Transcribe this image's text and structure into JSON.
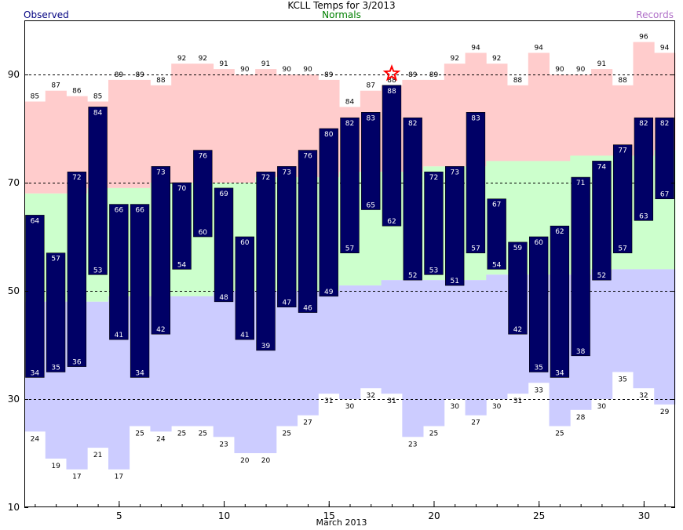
{
  "chart_data": {
    "type": "bar",
    "title": "KCLL Temps for 3/2013",
    "xlabel": "March 2013",
    "legend": {
      "observed": "Observed",
      "normals": "Normals",
      "records": "Records"
    },
    "ylim": [
      10,
      100
    ],
    "xlim": [
      0.5,
      31.5
    ],
    "y_ticks": [
      10,
      30,
      50,
      70,
      90
    ],
    "x_ticks": [
      5,
      10,
      15,
      20,
      25,
      30
    ],
    "grid": "dashed at y ticks",
    "record_high_day": 18,
    "days": [
      1,
      2,
      3,
      4,
      5,
      6,
      7,
      8,
      9,
      10,
      11,
      12,
      13,
      14,
      15,
      16,
      17,
      18,
      19,
      20,
      21,
      22,
      23,
      24,
      25,
      26,
      27,
      28,
      29,
      30,
      31
    ],
    "observed_high": [
      64,
      57,
      72,
      84,
      66,
      66,
      73,
      70,
      76,
      69,
      60,
      72,
      73,
      76,
      80,
      82,
      83,
      88,
      82,
      72,
      73,
      83,
      67,
      59,
      60,
      62,
      71,
      74,
      77,
      82,
      82
    ],
    "observed_low": [
      34,
      35,
      36,
      53,
      41,
      34,
      42,
      54,
      60,
      48,
      41,
      39,
      47,
      46,
      49,
      57,
      65,
      62,
      52,
      53,
      51,
      57,
      54,
      42,
      35,
      34,
      38,
      52,
      57,
      63,
      67
    ],
    "normal_high": [
      68,
      68,
      68,
      69,
      69,
      69,
      70,
      70,
      70,
      70,
      70,
      71,
      71,
      71,
      71,
      72,
      72,
      72,
      72,
      73,
      73,
      73,
      74,
      74,
      74,
      74,
      75,
      75,
      75,
      75,
      76
    ],
    "normal_low": [
      48,
      48,
      48,
      48,
      49,
      49,
      49,
      49,
      49,
      50,
      50,
      50,
      50,
      50,
      50,
      51,
      51,
      52,
      52,
      52,
      52,
      52,
      53,
      53,
      53,
      53,
      53,
      54,
      54,
      54,
      54
    ],
    "record_high": [
      85,
      87,
      86,
      85,
      89,
      89,
      88,
      92,
      92,
      91,
      90,
      91,
      90,
      90,
      89,
      84,
      87,
      88,
      89,
      89,
      92,
      94,
      92,
      88,
      94,
      90,
      90,
      91,
      88,
      96,
      94
    ],
    "record_low": [
      24,
      19,
      17,
      21,
      17,
      25,
      24,
      25,
      25,
      23,
      20,
      20,
      25,
      27,
      31,
      30,
      32,
      31,
      23,
      25,
      30,
      27,
      30,
      31,
      33,
      25,
      28,
      30,
      35,
      32,
      29
    ],
    "colors": {
      "observed_bar": "#000066",
      "normal_band": "#ccffcc",
      "record_high_band": "#ffcccc",
      "record_low_band": "#ccccff",
      "record_star": "#ff0000",
      "grid": "#000000"
    }
  }
}
